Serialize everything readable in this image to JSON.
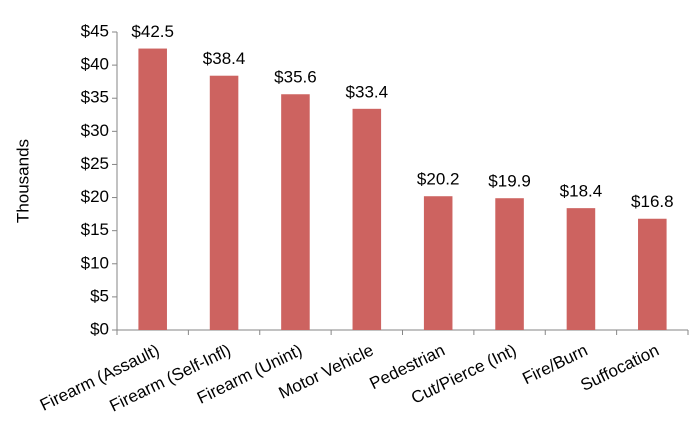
{
  "chart_data": {
    "type": "bar",
    "y_label": "Thousands",
    "categories": [
      "Firearm (Assault)",
      "Firearm (Self-Infl)",
      "Firearm (Unint)",
      "Motor Vehicle",
      "Pedestrian",
      "Cut/Pierce (Int)",
      "Fire/Burn",
      "Suffocation"
    ],
    "values": [
      42.5,
      38.4,
      35.6,
      33.4,
      20.2,
      19.9,
      18.4,
      16.8
    ],
    "value_labels": [
      "$42.5",
      "$38.4",
      "$35.6",
      "$33.4",
      "$20.2",
      "$19.9",
      "$18.4",
      "$16.8"
    ],
    "color": "#cd6360",
    "ylim": [
      0,
      45
    ],
    "yticks": [
      {
        "value": 0,
        "label": "$0"
      },
      {
        "value": 5,
        "label": "$5"
      },
      {
        "value": 10,
        "label": "$10"
      },
      {
        "value": 15,
        "label": "$15"
      },
      {
        "value": 20,
        "label": "$20"
      },
      {
        "value": 25,
        "label": "$25"
      },
      {
        "value": 30,
        "label": "$30"
      },
      {
        "value": 35,
        "label": "$35"
      },
      {
        "value": 40,
        "label": "$40"
      },
      {
        "value": 45,
        "label": "$45"
      }
    ],
    "grid": false
  }
}
